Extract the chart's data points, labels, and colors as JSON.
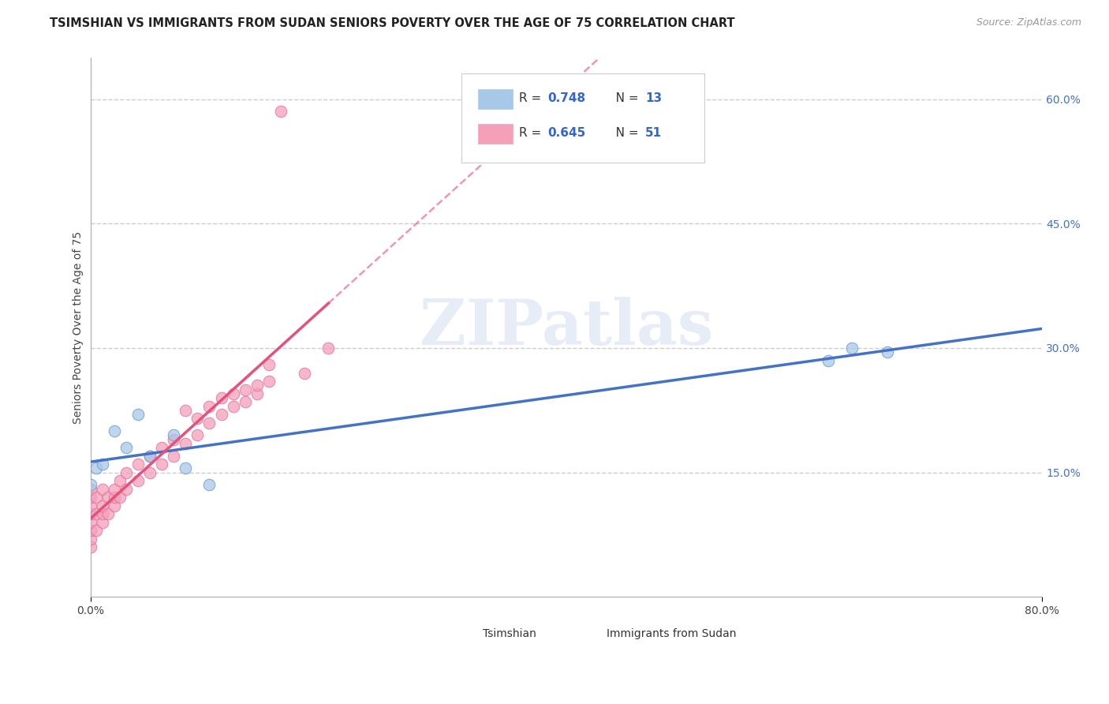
{
  "title": "TSIMSHIAN VS IMMIGRANTS FROM SUDAN SENIORS POVERTY OVER THE AGE OF 75 CORRELATION CHART",
  "source": "Source: ZipAtlas.com",
  "ylabel": "Seniors Poverty Over the Age of 75",
  "xlim": [
    0.0,
    0.8
  ],
  "ylim": [
    0.0,
    0.65
  ],
  "ytick_positions": [
    0.15,
    0.3,
    0.45,
    0.6
  ],
  "ytick_labels": [
    "15.0%",
    "30.0%",
    "45.0%",
    "60.0%"
  ],
  "background_color": "#ffffff",
  "legend_label1": "Tsimshian",
  "legend_label2": "Immigrants from Sudan",
  "color_tsimshian": "#a8c8e8",
  "color_sudan": "#f4a0b8",
  "color_tsimshian_line": "#4472c4",
  "color_sudan_line": "#e8507a",
  "R_color": "#3366cc",
  "title_fontsize": 10.5,
  "axis_label_fontsize": 10,
  "tick_fontsize": 10,
  "tsimshian_x": [
    0.0,
    0.005,
    0.01,
    0.02,
    0.03,
    0.04,
    0.05,
    0.07,
    0.08,
    0.1,
    0.62,
    0.64,
    0.67
  ],
  "tsimshian_y": [
    0.135,
    0.155,
    0.16,
    0.2,
    0.18,
    0.22,
    0.17,
    0.195,
    0.155,
    0.135,
    0.285,
    0.3,
    0.295
  ],
  "sudan_x": [
    0.0,
    0.0,
    0.0,
    0.0,
    0.0,
    0.0,
    0.0,
    0.0,
    0.005,
    0.005,
    0.005,
    0.01,
    0.01,
    0.01,
    0.01,
    0.015,
    0.015,
    0.02,
    0.02,
    0.02,
    0.025,
    0.025,
    0.03,
    0.03,
    0.04,
    0.04,
    0.05,
    0.05,
    0.06,
    0.06,
    0.07,
    0.07,
    0.08,
    0.08,
    0.09,
    0.09,
    0.1,
    0.1,
    0.11,
    0.11,
    0.12,
    0.12,
    0.13,
    0.13,
    0.14,
    0.14,
    0.15,
    0.15,
    0.16,
    0.18,
    0.2
  ],
  "sudan_y": [
    0.06,
    0.07,
    0.08,
    0.09,
    0.1,
    0.11,
    0.12,
    0.13,
    0.08,
    0.1,
    0.12,
    0.09,
    0.1,
    0.11,
    0.13,
    0.1,
    0.12,
    0.11,
    0.12,
    0.13,
    0.12,
    0.14,
    0.13,
    0.15,
    0.14,
    0.16,
    0.15,
    0.17,
    0.16,
    0.18,
    0.17,
    0.19,
    0.185,
    0.225,
    0.195,
    0.215,
    0.21,
    0.23,
    0.22,
    0.24,
    0.23,
    0.245,
    0.235,
    0.25,
    0.245,
    0.255,
    0.26,
    0.28,
    0.585,
    0.27,
    0.3
  ]
}
